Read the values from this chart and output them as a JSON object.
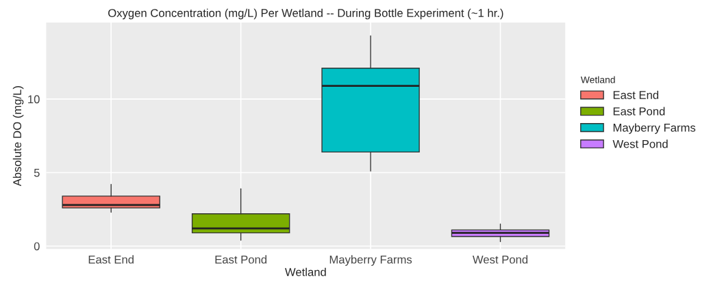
{
  "chart_data": {
    "type": "box",
    "title": "Oxygen Concentration (mg/L) Per Wetland -- During Bottle Experiment (~1 hr.)",
    "xlabel": "Wetland",
    "ylabel": "Absolute DO (mg/L)",
    "legend_title": "Wetland",
    "categories": [
      "East End",
      "East Pond",
      "Mayberry Farms",
      "West Pond"
    ],
    "series": [
      {
        "name": "East End",
        "color": "#f8766d",
        "boxes": [
          {
            "low": 2.3,
            "q1": 2.6,
            "median": 2.8,
            "q3": 3.4,
            "high": 4.2
          },
          null,
          null,
          null
        ]
      },
      {
        "name": "East Pond",
        "color": "#7cae00",
        "boxes": [
          null,
          {
            "low": 0.4,
            "q1": 0.9,
            "median": 1.2,
            "q3": 2.2,
            "high": 3.9
          },
          null,
          null
        ]
      },
      {
        "name": "Mayberry Farms",
        "color": "#00bfc4",
        "boxes": [
          null,
          null,
          {
            "low": 5.1,
            "q1": 6.4,
            "median": 10.9,
            "q3": 12.1,
            "high": 14.3
          },
          null
        ]
      },
      {
        "name": "West Pond",
        "color": "#c77cff",
        "boxes": [
          null,
          null,
          null,
          {
            "low": 0.3,
            "q1": 0.65,
            "median": 0.9,
            "q3": 1.1,
            "high": 1.5
          }
        ]
      }
    ],
    "ylim": [
      -0.2,
      15.2
    ],
    "yticks": [
      0,
      5,
      10
    ],
    "grid": true,
    "legend": "right"
  }
}
